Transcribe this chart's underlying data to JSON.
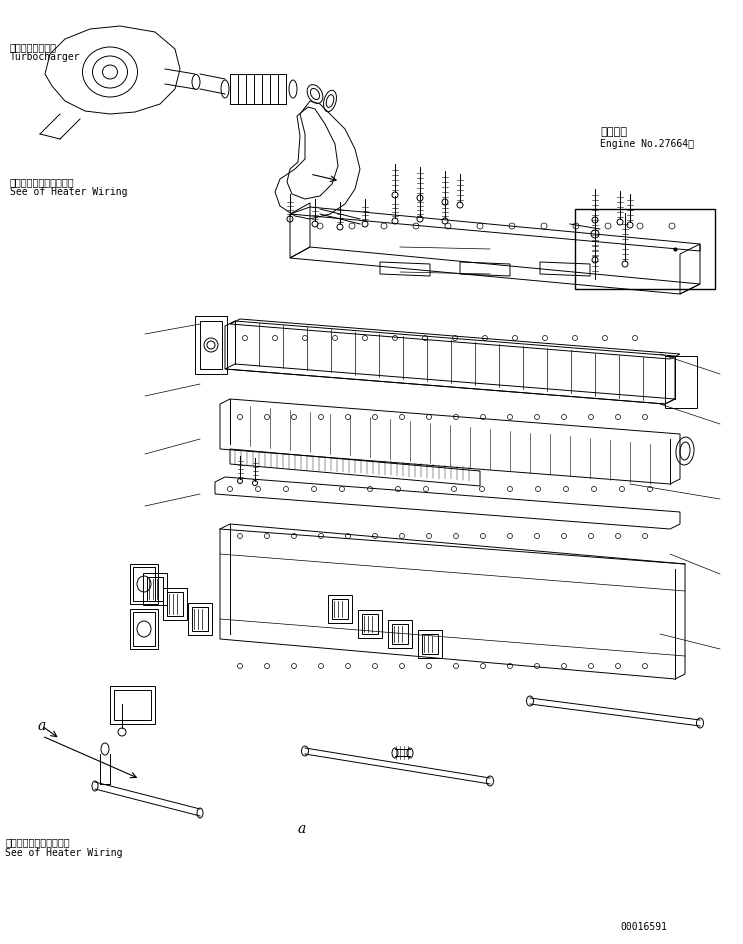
{
  "bg_color": "#ffffff",
  "line_color": "#000000",
  "title_jp": "適用号機",
  "title_en": "Engine No.27664〜",
  "label_turbo_jp": "ターボチャージャ",
  "label_turbo_en": "Turbocharger",
  "label_heater_jp": "ヒータワイヤリング参照",
  "label_heater_en": "See of Heater Wiring",
  "label_heater2_jp": "ヒータワイヤリング参照",
  "label_heater2_en": "See of Heater Wiring",
  "label_a": "a",
  "part_number": "00016591",
  "fig_width": 7.43,
  "fig_height": 9.45
}
